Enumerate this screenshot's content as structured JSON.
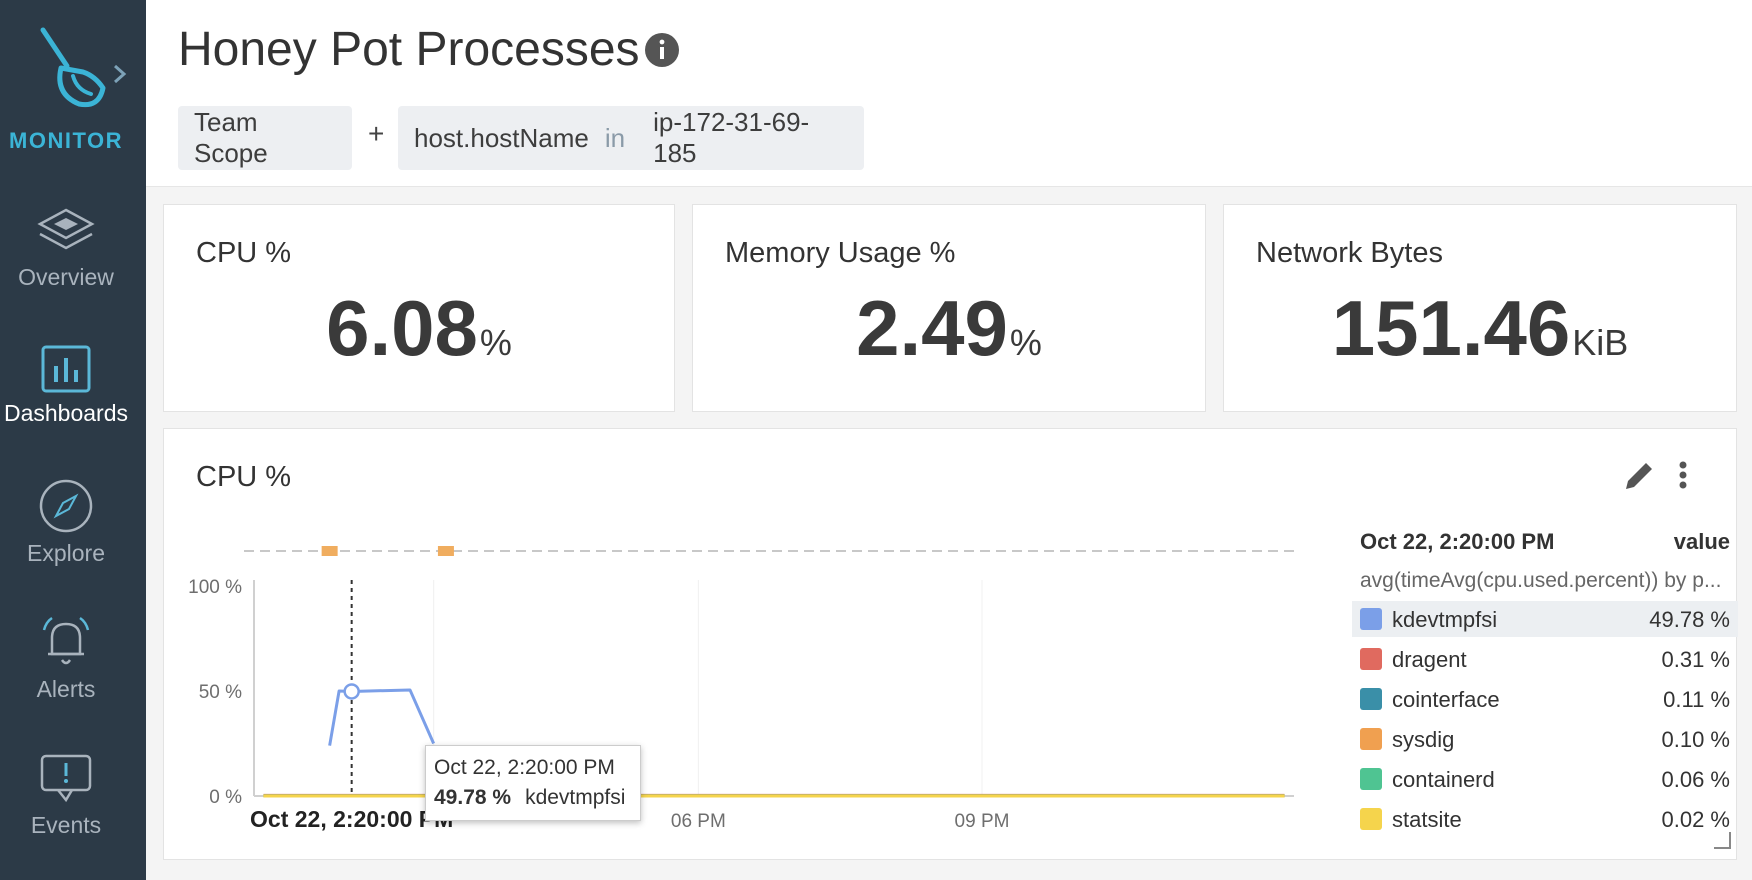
{
  "sidebar": {
    "brand": "MONITOR",
    "items": [
      {
        "label": "Overview",
        "icon": "layers-icon",
        "active": false
      },
      {
        "label": "Dashboards",
        "icon": "bar-chart-icon",
        "active": true
      },
      {
        "label": "Explore",
        "icon": "compass-icon",
        "active": false
      },
      {
        "label": "Alerts",
        "icon": "bell-icon",
        "active": false
      },
      {
        "label": "Events",
        "icon": "chat-alert-icon",
        "active": false
      }
    ]
  },
  "header": {
    "title": "Honey Pot Processes",
    "scope": {
      "team_label": "Team Scope",
      "plus": "+",
      "key": "host.hostName",
      "operator": "in",
      "value": "ip-172-31-69-185"
    }
  },
  "metrics": [
    {
      "title": "CPU %",
      "value": "6.08",
      "unit": "%"
    },
    {
      "title": "Memory Usage %",
      "value": "2.49",
      "unit": "%"
    },
    {
      "title": "Network Bytes",
      "value": "151.46",
      "unit": "KiB"
    }
  ],
  "panel": {
    "title": "CPU %",
    "tooltip": {
      "time": "Oct 22, 2:20:00 PM",
      "value": "49.78 %",
      "series": "kdevtmpfsi"
    },
    "legend": {
      "time_header": "Oct 22, 2:20:00 PM",
      "value_header": "value",
      "query": "avg(timeAvg(cpu.used.percent)) by p..."
    }
  },
  "colors": {
    "sidebar_bg": "#2c3a47",
    "brand": "#3bb4d6",
    "event_marker": "#f0ad5f"
  },
  "chart_data": {
    "type": "line",
    "ylim": [
      0,
      100
    ],
    "y_ticks": [
      "100 %",
      "50 %",
      "0 %"
    ],
    "x_ticks": [
      "Oct 22, 2:20:00 PM",
      "06 PM",
      "09 PM"
    ],
    "x_tick_hours": [
      14.333,
      18,
      21
    ],
    "x_range_hours": [
      13.3,
      24.3
    ],
    "cursor_hour": 14.333,
    "event_marker_hours": [
      14.1,
      15.33
    ],
    "series": [
      {
        "name": "kdevtmpfsi",
        "color": "#7b9fe8",
        "x_hours": [
          14.1,
          14.2,
          14.333,
          14.95,
          15.2
        ],
        "values": [
          24,
          50,
          49.78,
          50.5,
          25
        ],
        "value": "49.78 %"
      },
      {
        "name": "dragent",
        "color": "#e06a5f",
        "x_hours": [
          13.4,
          24.2
        ],
        "values": [
          0.31,
          0.31
        ],
        "value": "0.31 %"
      },
      {
        "name": "cointerface",
        "color": "#3a8fa8",
        "x_hours": [
          13.4,
          24.2
        ],
        "values": [
          0.11,
          0.11
        ],
        "value": "0.11 %"
      },
      {
        "name": "sysdig",
        "color": "#f0a050",
        "x_hours": [
          13.4,
          24.2
        ],
        "values": [
          0.1,
          0.1
        ],
        "value": "0.10 %"
      },
      {
        "name": "containerd",
        "color": "#4fc492",
        "x_hours": [
          13.4,
          24.2
        ],
        "values": [
          0.06,
          0.06
        ],
        "value": "0.06 %"
      },
      {
        "name": "statsite",
        "color": "#f5d44c",
        "x_hours": [
          13.4,
          24.2
        ],
        "values": [
          0.02,
          0.02
        ],
        "value": "0.02 %"
      }
    ]
  }
}
